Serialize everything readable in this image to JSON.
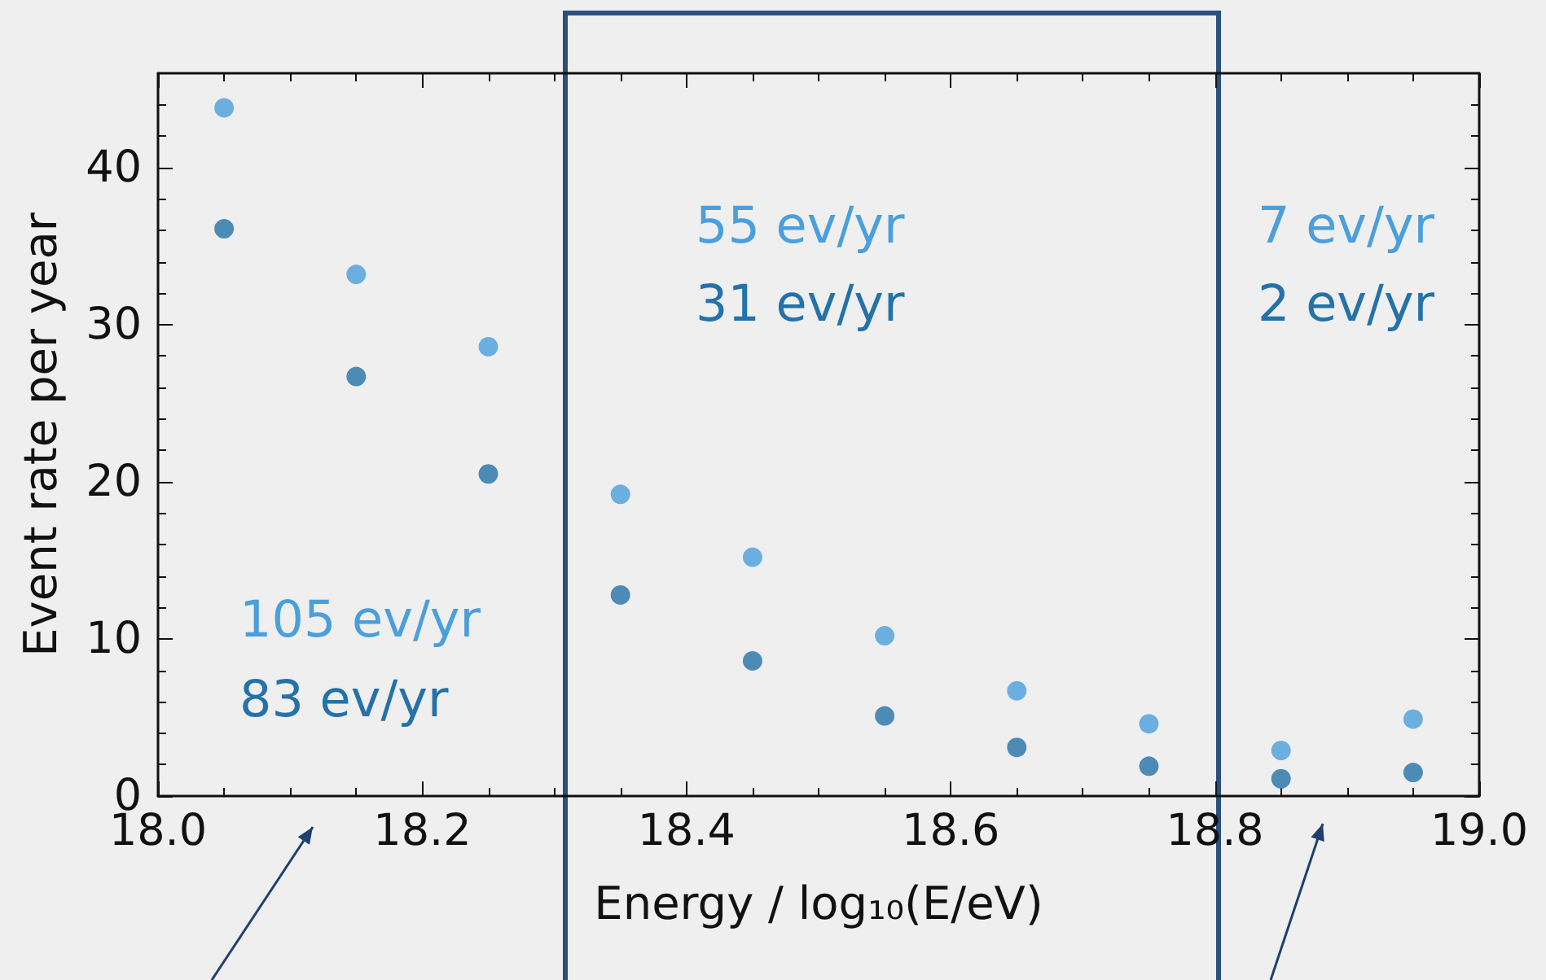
{
  "chart_data": {
    "type": "scatter",
    "xlabel": "Energy / log₁₀(E/eV)",
    "ylabel": "Event rate per year",
    "x": [
      18.05,
      18.15,
      18.25,
      18.35,
      18.45,
      18.55,
      18.65,
      18.75,
      18.85,
      18.95
    ],
    "series": [
      {
        "color": "#4a9fdc",
        "values": [
          43.8,
          33.2,
          28.6,
          19.2,
          15.2,
          10.2,
          6.7,
          4.6,
          2.9,
          4.9
        ]
      },
      {
        "color": "#2472a9",
        "values": [
          36.1,
          26.7,
          20.5,
          12.8,
          8.6,
          5.1,
          3.1,
          1.9,
          1.1,
          1.5
        ]
      }
    ],
    "xlim": [
      18.0,
      19.0
    ],
    "xticks": [
      {
        "value": 18,
        "label": "18.0"
      },
      18.2,
      18.4,
      18.6,
      18.8,
      {
        "value": 19,
        "label": "19.0"
      }
    ],
    "ylim": [
      0,
      46
    ],
    "yticks": [
      0,
      10,
      20,
      30,
      40
    ],
    "marker": "circle",
    "annotations": [
      "105 ev/yr",
      "83 ev/yr",
      "55 ev/yr",
      "31 ev/yr",
      "7 ev/yr",
      "2 ev/yr"
    ]
  }
}
